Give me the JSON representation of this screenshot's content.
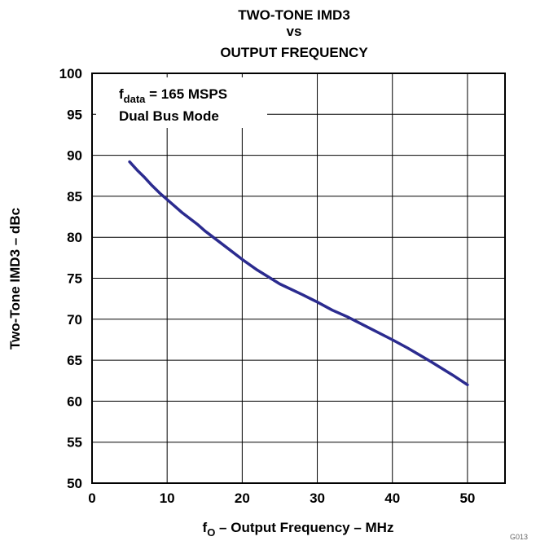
{
  "chart_data": {
    "type": "line",
    "title_lines": [
      "TWO-TONE IMD3",
      "vs",
      "OUTPUT FREQUENCY"
    ],
    "xlabel": {
      "f": "f",
      "sub": "O",
      "rest": " – Output Frequency – MHz"
    },
    "ylabel": "Two-Tone IMD3 – dBc",
    "xlim": [
      0,
      55
    ],
    "ylim": [
      50,
      100
    ],
    "xticks": [
      "0",
      "10",
      "20",
      "30",
      "40",
      "50"
    ],
    "yticks": [
      "50",
      "55",
      "60",
      "65",
      "70",
      "75",
      "80",
      "85",
      "90",
      "95",
      "100"
    ],
    "annotation": {
      "f": "f",
      "sub": "data",
      "rest": " = 165 MSPS",
      "line2": "Dual Bus Mode"
    },
    "grid": true,
    "series": [
      {
        "color": "#2b2b8f",
        "x": [
          5,
          6,
          7,
          8,
          9,
          10,
          12,
          14,
          15,
          17,
          20,
          22,
          25,
          28,
          30,
          32,
          34,
          37,
          40,
          42,
          45,
          48,
          50
        ],
        "y": [
          89.2,
          88.2,
          87.3,
          86.3,
          85.4,
          84.6,
          83.0,
          81.6,
          80.8,
          79.4,
          77.3,
          76.0,
          74.3,
          73.0,
          72.1,
          71.1,
          70.3,
          68.9,
          67.5,
          66.5,
          64.9,
          63.2,
          62.0
        ]
      }
    ],
    "figure_id": "G013"
  }
}
